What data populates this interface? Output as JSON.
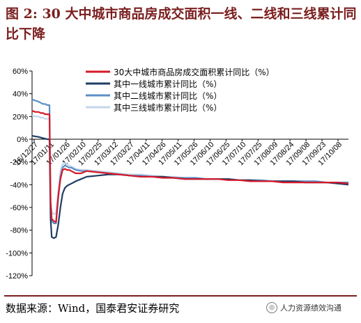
{
  "title": "图 2: 30 大中城市商品房成交面积一线、二线和三线累计同比下降",
  "source": "数据来源：Wind，国泰君安证券研究",
  "watermark": "人力资源绩效沟通",
  "watermark_icon": "wechat-icon",
  "colors": {
    "total": "#d7192a",
    "tier1": "#1f3c62",
    "tier2": "#5b8ec4",
    "tier3": "#c5d6ea"
  },
  "chart_data": {
    "type": "line",
    "ylim": [
      -120,
      60
    ],
    "yticks": [
      "60%",
      "40%",
      "20%",
      "0%",
      "-20%",
      "-40%",
      "-60%",
      "-80%",
      "-100%",
      "-120%"
    ],
    "xtick_labels": [
      "16/12/27",
      "17/01/11",
      "17/01/26",
      "17/02/10",
      "17/02/25",
      "17/03/12",
      "17/03/27",
      "17/04/11",
      "17/04/26",
      "17/05/11",
      "17/05/26",
      "17/06/10",
      "17/06/25",
      "17/07/10",
      "17/07/25",
      "17/08/09",
      "17/08/24",
      "17/09/08",
      "17/09/23",
      "17/10/08"
    ],
    "legend_position": "top-right",
    "x": [
      0,
      3,
      6,
      8,
      10,
      12,
      14,
      15,
      16,
      17,
      18,
      20,
      22,
      24,
      26,
      28,
      30,
      32,
      34,
      36,
      38,
      40,
      45,
      50,
      60,
      70,
      80,
      90,
      100,
      110,
      120,
      130,
      140,
      150,
      160,
      170,
      180,
      190,
      200,
      210,
      220,
      230,
      240,
      250,
      260,
      270,
      280,
      290
    ],
    "series": [
      {
        "name": "30大中城市商品房成交面积累计同比（%）",
        "key": "total",
        "values": [
          25,
          24,
          24,
          23,
          23,
          22,
          22,
          22,
          22,
          -55,
          -70,
          -72,
          -73,
          -50,
          -35,
          -27,
          -26,
          -27,
          -27,
          -28,
          -29,
          -30,
          -30,
          -28,
          -29,
          -30,
          -31,
          -32,
          -33,
          -33,
          -34,
          -34,
          -35,
          -35,
          -35,
          -35,
          -36,
          -36,
          -37,
          -37,
          -37,
          -38,
          -38,
          -38,
          -38,
          -38,
          -38,
          -39
        ]
      },
      {
        "name": "其中一线城市累计同比（%）",
        "key": "tier1",
        "values": [
          3,
          2.5,
          2,
          1.5,
          1,
          0.5,
          0,
          0,
          0,
          -70,
          -86,
          -87,
          -86,
          -75,
          -60,
          -48,
          -43,
          -41,
          -40,
          -39,
          -38,
          -37,
          -35,
          -33,
          -32,
          -31,
          -31,
          -32,
          -33,
          -33,
          -33,
          -34,
          -35,
          -35,
          -35,
          -35,
          -35,
          -36,
          -36,
          -37,
          -37,
          -37,
          -37,
          -38,
          -38,
          -38,
          -39,
          -40
        ]
      },
      {
        "name": "其中二线城市累计同比（%）",
        "key": "tier2",
        "values": [
          35,
          34,
          33,
          32,
          31,
          31,
          30,
          30,
          30,
          -60,
          -72,
          -74,
          -74,
          -52,
          -33,
          -25,
          -23,
          -24,
          -25,
          -25,
          -26,
          -27,
          -28,
          -28,
          -29,
          -30,
          -31,
          -32,
          -32,
          -33,
          -33,
          -34,
          -34,
          -34,
          -35,
          -35,
          -35,
          -36,
          -36,
          -36,
          -37,
          -37,
          -37,
          -37,
          -37,
          -38,
          -38,
          -38
        ]
      },
      {
        "name": "其中三线城市累计同比（%）",
        "key": "tier3",
        "values": [
          21,
          20,
          20,
          19,
          19,
          18,
          18,
          18,
          18,
          -55,
          -64,
          -66,
          -65,
          -45,
          -28,
          -22,
          -21,
          -22,
          -23,
          -24,
          -25,
          -26,
          -27,
          -27,
          -28,
          -29,
          -30,
          -31,
          -31,
          -32,
          -33,
          -33,
          -34,
          -34,
          -35,
          -35,
          -35,
          -36,
          -36,
          -36,
          -37,
          -37,
          -37,
          -37,
          -37,
          -38,
          -38,
          -38
        ]
      }
    ]
  }
}
